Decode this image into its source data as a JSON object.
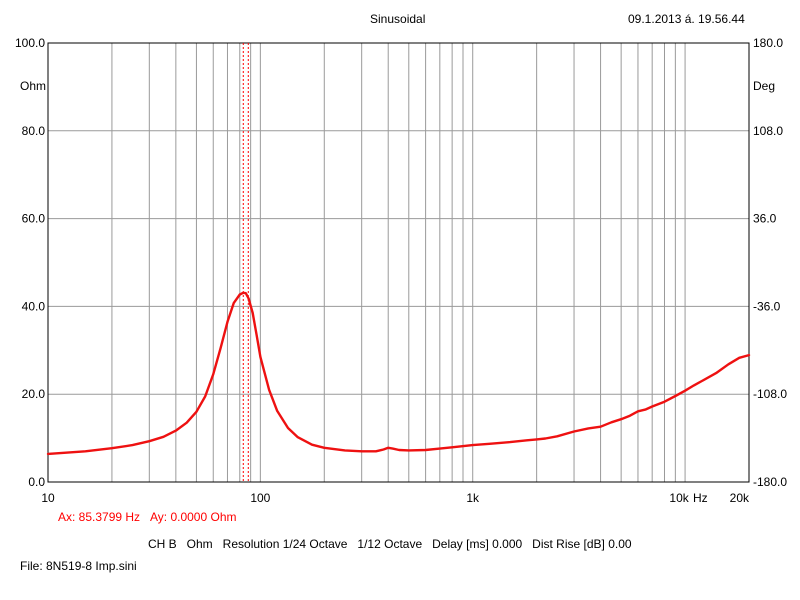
{
  "header": {
    "mode": "Sinusoidal",
    "timestamp": "09.1.2013 á. 19.56.44"
  },
  "cursor": {
    "ax_label": "Ax: 85.3799 Hz",
    "ay_label": "Ay: 0.0000 Ohm",
    "x": 85.3799
  },
  "footer": {
    "channel_line": "CH B   Ohm   Resolution 1/24 Octave   1/12 Octave   Delay [ms] 0.000   Dist Rise [dB] 0.00",
    "file_line": "File: 8N519-8 Imp.sini"
  },
  "chart_data": {
    "type": "line",
    "x_scale": "log",
    "xlim": [
      10,
      20000
    ],
    "ylim": [
      0,
      100
    ],
    "y2lim": [
      -180,
      180
    ],
    "ylabel": "Ohm",
    "y2label": "Deg",
    "xunit": "Hz",
    "grid": true,
    "x_tick_labels": [
      {
        "value": 10,
        "label": "10"
      },
      {
        "value": 100,
        "label": "100"
      },
      {
        "value": 1000,
        "label": "1k"
      },
      {
        "value": 10000,
        "label": "10k"
      },
      {
        "value": 20000,
        "label": "20k"
      }
    ],
    "y_tick_labels": [
      {
        "value": 0,
        "label": "0.0"
      },
      {
        "value": 20,
        "label": "20.0"
      },
      {
        "value": 40,
        "label": "40.0"
      },
      {
        "value": 60,
        "label": "60.0"
      },
      {
        "value": 80,
        "label": "80.0"
      },
      {
        "value": 100,
        "label": "100.0"
      }
    ],
    "y2_tick_labels": [
      {
        "value": -180,
        "label": "-180.0"
      },
      {
        "value": -108,
        "label": "-108.0"
      },
      {
        "value": -36,
        "label": "-36.0"
      },
      {
        "value": 36,
        "label": "36.0"
      },
      {
        "value": 108,
        "label": "108.0"
      },
      {
        "value": 180,
        "label": "180.0"
      }
    ],
    "series": [
      {
        "color": "#ee1111",
        "x": [
          10,
          15,
          20,
          25,
          30,
          35,
          40,
          45,
          50,
          55,
          60,
          65,
          70,
          75,
          80,
          83,
          85.4,
          88,
          92,
          96,
          100,
          110,
          120,
          135,
          150,
          175,
          200,
          250,
          300,
          350,
          380,
          400,
          420,
          450,
          500,
          600,
          700,
          800,
          1000,
          1200,
          1500,
          1800,
          2000,
          2200,
          2500,
          3000,
          3500,
          4000,
          4500,
          5000,
          5500,
          6000,
          6500,
          7000,
          8000,
          9000,
          10000,
          11000,
          12000,
          14000,
          16000,
          18000,
          20000
        ],
        "y": [
          6.4,
          7.0,
          7.7,
          8.4,
          9.3,
          10.3,
          11.7,
          13.5,
          16.0,
          19.5,
          24.5,
          30.5,
          36.5,
          40.8,
          42.7,
          43.1,
          43.0,
          41.8,
          38.5,
          33.5,
          28.5,
          21.0,
          16.2,
          12.3,
          10.2,
          8.5,
          7.8,
          7.2,
          7.0,
          7.0,
          7.4,
          7.8,
          7.6,
          7.3,
          7.2,
          7.3,
          7.6,
          7.9,
          8.4,
          8.7,
          9.1,
          9.5,
          9.7,
          9.9,
          10.4,
          11.5,
          12.2,
          12.6,
          13.6,
          14.3,
          15.1,
          16.1,
          16.5,
          17.2,
          18.3,
          19.6,
          20.8,
          22.0,
          23.0,
          24.8,
          26.8,
          28.3,
          28.9
        ]
      }
    ]
  }
}
